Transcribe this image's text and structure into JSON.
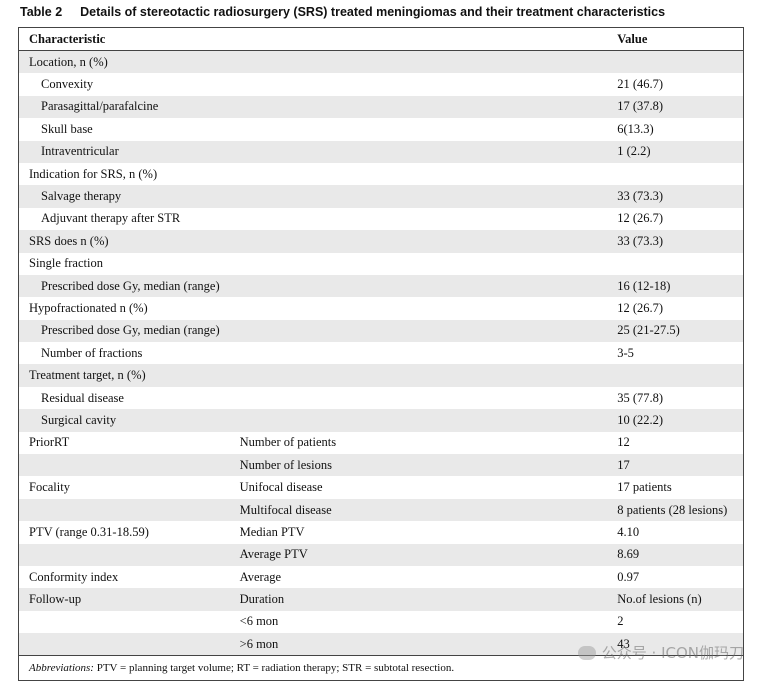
{
  "caption": {
    "label": "Table 2",
    "title": "Details of stereotactic radiosurgery (SRS) treated meningiomas and their treatment characteristics"
  },
  "table": {
    "headers": [
      "Characteristic",
      "",
      "Value"
    ],
    "rows": [
      {
        "c1": "Location, n (%)",
        "c2": "",
        "c3": "",
        "indent": false
      },
      {
        "c1": "Convexity",
        "c2": "",
        "c3": "21 (46.7)",
        "indent": true
      },
      {
        "c1": "Parasagittal/parafalcine",
        "c2": "",
        "c3": "17 (37.8)",
        "indent": true
      },
      {
        "c1": "Skull base",
        "c2": "",
        "c3": "6(13.3)",
        "indent": true
      },
      {
        "c1": "Intraventricular",
        "c2": "",
        "c3": "1 (2.2)",
        "indent": true
      },
      {
        "c1": "Indication for SRS, n (%)",
        "c2": "",
        "c3": "",
        "indent": false
      },
      {
        "c1": "Salvage therapy",
        "c2": "",
        "c3": "33 (73.3)",
        "indent": true
      },
      {
        "c1": "Adjuvant therapy after STR",
        "c2": "",
        "c3": "12 (26.7)",
        "indent": true
      },
      {
        "c1": "SRS does n (%)",
        "c2": "",
        "c3": "33 (73.3)",
        "indent": false
      },
      {
        "c1": "Single fraction",
        "c2": "",
        "c3": "",
        "indent": false
      },
      {
        "c1": "Prescribed dose Gy, median (range)",
        "c2": "",
        "c3": "16 (12-18)",
        "indent": true
      },
      {
        "c1": "Hypofractionated n (%)",
        "c2": "",
        "c3": "12 (26.7)",
        "indent": false
      },
      {
        "c1": "Prescribed dose Gy, median (range)",
        "c2": "",
        "c3": "25 (21-27.5)",
        "indent": true
      },
      {
        "c1": "Number of fractions",
        "c2": "",
        "c3": "3-5",
        "indent": true
      },
      {
        "c1": "Treatment target, n (%)",
        "c2": "",
        "c3": "",
        "indent": false
      },
      {
        "c1": "Residual disease",
        "c2": "",
        "c3": "35 (77.8)",
        "indent": true
      },
      {
        "c1": "Surgical cavity",
        "c2": "",
        "c3": "10 (22.2)",
        "indent": true
      },
      {
        "c1": "PriorRT",
        "c2": "Number of patients",
        "c3": "12",
        "indent": false
      },
      {
        "c1": "",
        "c2": "Number of lesions",
        "c3": "17",
        "indent": false
      },
      {
        "c1": "Focality",
        "c2": "Unifocal disease",
        "c3": "17 patients",
        "indent": false
      },
      {
        "c1": "",
        "c2": "Multifocal disease",
        "c3": "8 patients (28 lesions)",
        "indent": false
      },
      {
        "c1": "PTV (range 0.31-18.59)",
        "c2": "Median PTV",
        "c3": "4.10",
        "indent": false
      },
      {
        "c1": "",
        "c2": "Average PTV",
        "c3": "8.69",
        "indent": false
      },
      {
        "c1": "Conformity index",
        "c2": "Average",
        "c3": "0.97",
        "indent": false
      },
      {
        "c1": "Follow-up",
        "c2": "Duration",
        "c3": "No.of lesions (n)",
        "indent": false
      },
      {
        "c1": "",
        "c2": "<6 mon",
        "c3": "2",
        "indent": false
      },
      {
        "c1": "",
        "c2": ">6 mon",
        "c3": "43",
        "indent": false
      }
    ]
  },
  "footnote": {
    "label": "Abbreviations:",
    "text": " PTV = planning target volume; RT = radiation therapy; STR = subtotal resection."
  },
  "watermark": {
    "text": "公众号 · ICON伽玛刀",
    "icon": "wechat-icon"
  }
}
